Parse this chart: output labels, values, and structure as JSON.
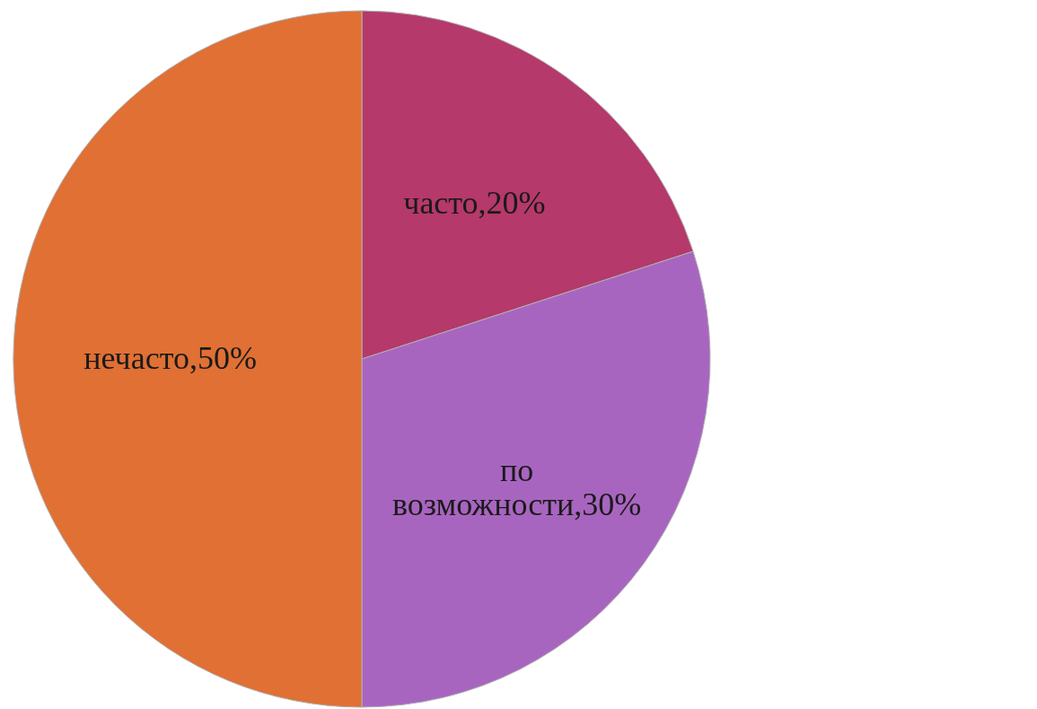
{
  "chart_data": {
    "type": "pie",
    "categories": [
      "часто",
      "по возможности",
      "нечасто"
    ],
    "values": [
      20,
      30,
      50
    ],
    "colors": [
      "#b5396a",
      "#a865c0",
      "#e07034"
    ],
    "value_labels": [
      "20%",
      "30%",
      "50%"
    ]
  }
}
